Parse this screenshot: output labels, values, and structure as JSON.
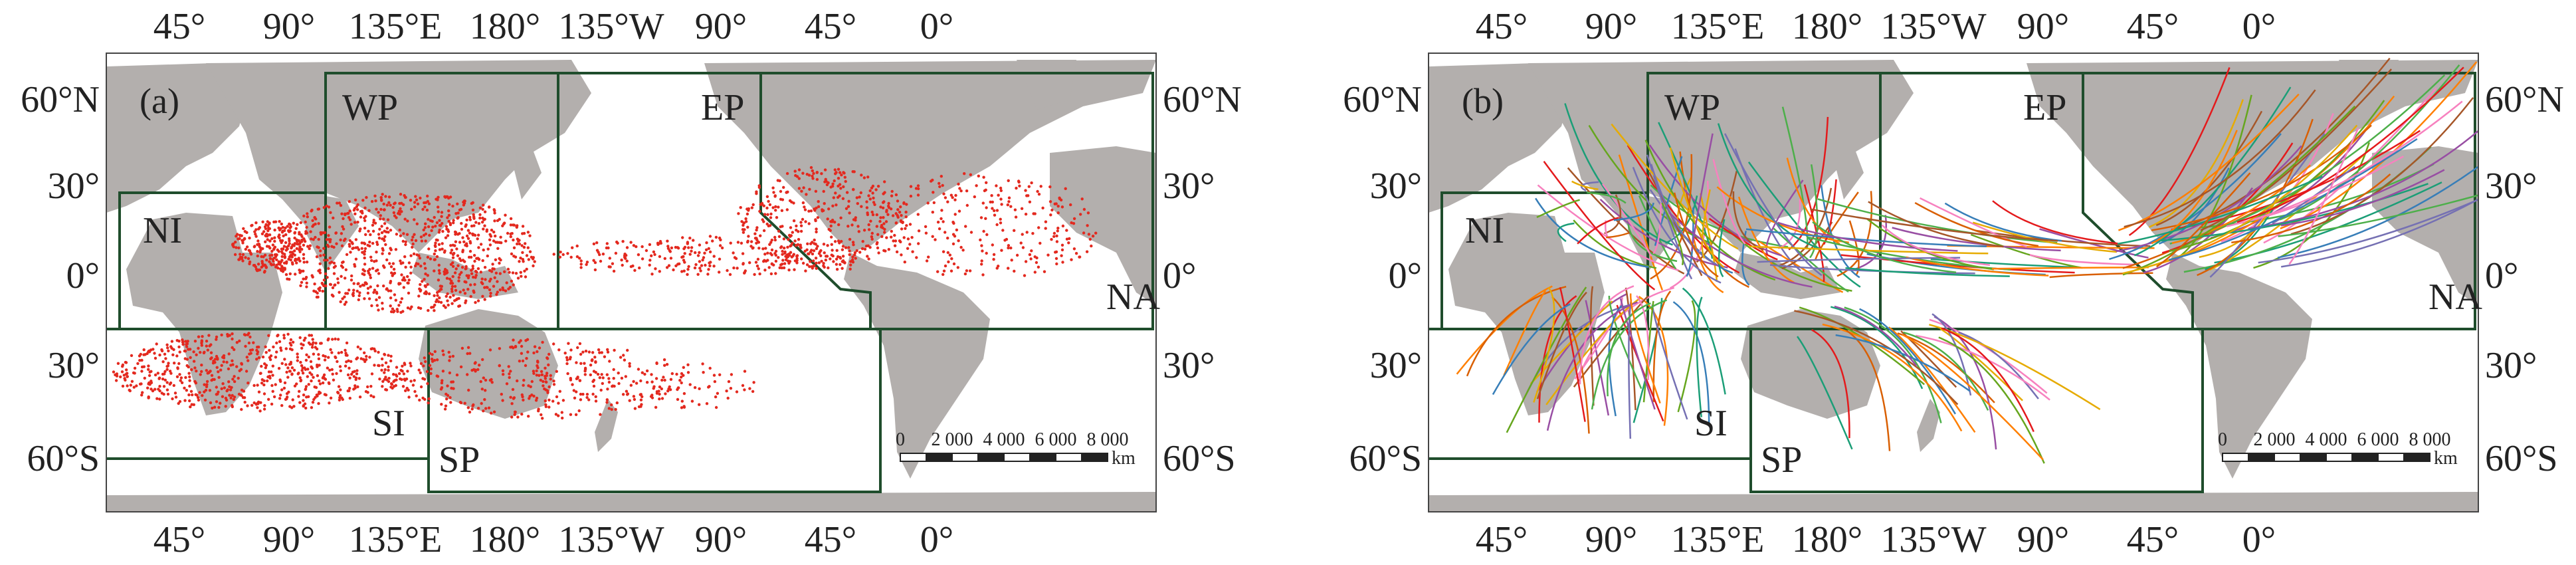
{
  "figure": {
    "panels": [
      {
        "label": "(a)",
        "content": "points",
        "top_ticks": [
          "45°",
          "90°",
          "135°E",
          "180°",
          "135°W",
          "90°",
          "45°",
          "0°"
        ],
        "bottom_ticks": [
          "45°",
          "90°",
          "135°E",
          "180°",
          "135°W",
          "90°",
          "45°",
          "0°"
        ],
        "left_ticks": [
          "60°N",
          "30°",
          "0°",
          "30°",
          "60°S"
        ],
        "right_ticks": [
          "60°N",
          "30°",
          "0°",
          "30°",
          "60°S"
        ],
        "regions": [
          "NI",
          "WP",
          "EP",
          "NA",
          "SI",
          "SP"
        ],
        "scalebar": {
          "labels": [
            "0",
            "2 000",
            "4 000",
            "6 000",
            "8 000"
          ],
          "unit": "km"
        }
      },
      {
        "label": "(b)",
        "content": "tracks",
        "top_ticks": [
          "45°",
          "90°",
          "135°E",
          "180°",
          "135°W",
          "90°",
          "45°",
          "0°"
        ],
        "bottom_ticks": [
          "45°",
          "90°",
          "135°E",
          "180°",
          "135°W",
          "90°",
          "45°",
          "0°"
        ],
        "left_ticks": [
          "60°N",
          "30°",
          "0°",
          "30°",
          "60°S"
        ],
        "right_ticks": [
          "60°N",
          "30°",
          "0°",
          "30°",
          "60°S"
        ],
        "regions": [
          "NI",
          "WP",
          "EP",
          "NA",
          "SI",
          "SP"
        ],
        "scalebar": {
          "labels": [
            "0",
            "2 000",
            "4 000",
            "6 000",
            "8 000"
          ],
          "unit": "km"
        }
      }
    ],
    "colors": {
      "land": "#b3afad",
      "ocean": "#ffffff",
      "region_border": "#1f4d2c",
      "points": "#e3291f",
      "track_palette": [
        "#e41a1c",
        "#377eb8",
        "#4daf4a",
        "#984ea3",
        "#ff7f00",
        "#a65628",
        "#f781bf",
        "#1b9e77",
        "#d95f02",
        "#7570b3",
        "#66a61e",
        "#e6ab02"
      ]
    }
  }
}
